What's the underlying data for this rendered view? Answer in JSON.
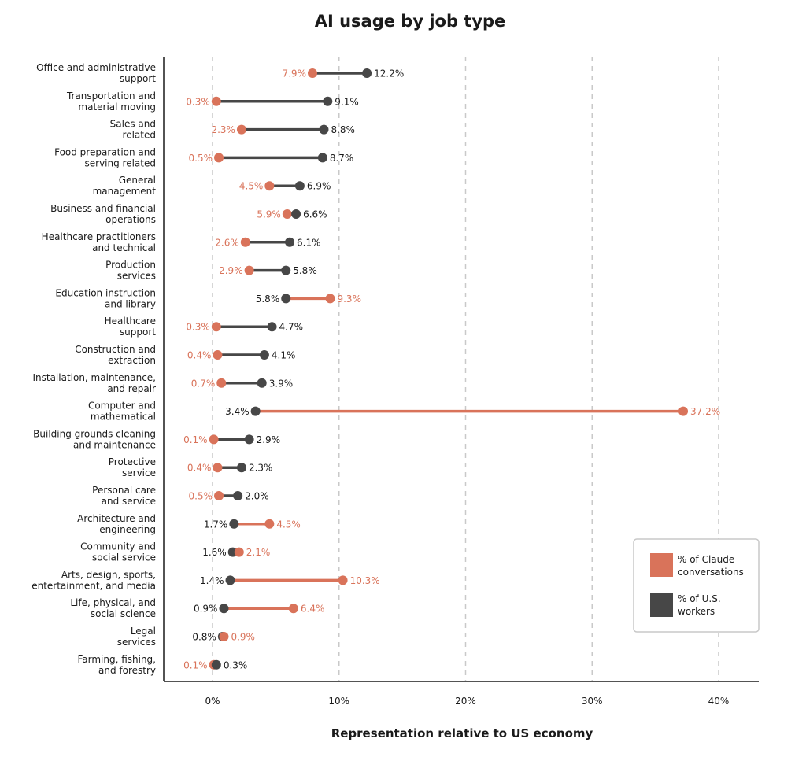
{
  "chart_data": {
    "type": "dumbbell",
    "title": "AI usage by job type",
    "xlabel": "Representation relative to US economy",
    "ylabel": "",
    "xlim": [
      -3.8,
      43
    ],
    "xticks": [
      0,
      10,
      20,
      30,
      40
    ],
    "xtick_labels": [
      "0%",
      "10%",
      "20%",
      "30%",
      "40%"
    ],
    "grid": "vertical dashed",
    "legend_position": "bottom-right",
    "colors": {
      "claude": "#d9735a",
      "workers": "#474747"
    },
    "series": [
      {
        "key": "claude",
        "name": "% of Claude conversations",
        "name_lines": [
          "% of Claude",
          "conversations"
        ]
      },
      {
        "key": "workers",
        "name": "% of U.S. workers",
        "name_lines": [
          "% of U.S.",
          "workers"
        ]
      }
    ],
    "categories": [
      {
        "label": [
          "Office and administrative",
          "support"
        ],
        "claude": 7.9,
        "claude_label": "7.9%",
        "workers": 12.2,
        "workers_label": "12.2%"
      },
      {
        "label": [
          "Transportation and",
          "material moving"
        ],
        "claude": 0.3,
        "claude_label": "0.3%",
        "workers": 9.1,
        "workers_label": "9.1%"
      },
      {
        "label": [
          "Sales and",
          "related"
        ],
        "claude": 2.3,
        "claude_label": "2.3%",
        "workers": 8.8,
        "workers_label": "8.8%"
      },
      {
        "label": [
          "Food preparation and",
          "serving related"
        ],
        "claude": 0.5,
        "claude_label": "0.5%",
        "workers": 8.7,
        "workers_label": "8.7%"
      },
      {
        "label": [
          "General",
          "management"
        ],
        "claude": 4.5,
        "claude_label": "4.5%",
        "workers": 6.9,
        "workers_label": "6.9%"
      },
      {
        "label": [
          "Business and financial",
          "operations"
        ],
        "claude": 5.9,
        "claude_label": "5.9%",
        "workers": 6.6,
        "workers_label": "6.6%"
      },
      {
        "label": [
          "Healthcare practitioners",
          "and technical"
        ],
        "claude": 2.6,
        "claude_label": "2.6%",
        "workers": 6.1,
        "workers_label": "6.1%"
      },
      {
        "label": [
          "Production",
          "services"
        ],
        "claude": 2.9,
        "claude_label": "2.9%",
        "workers": 5.8,
        "workers_label": "5.8%"
      },
      {
        "label": [
          "Education instruction",
          "and library"
        ],
        "claude": 9.3,
        "claude_label": "9.3%",
        "workers": 5.8,
        "workers_label": "5.8%"
      },
      {
        "label": [
          "Healthcare",
          "support"
        ],
        "claude": 0.3,
        "claude_label": "0.3%",
        "workers": 4.7,
        "workers_label": "4.7%"
      },
      {
        "label": [
          "Construction and",
          "extraction"
        ],
        "claude": 0.4,
        "claude_label": "0.4%",
        "workers": 4.1,
        "workers_label": "4.1%"
      },
      {
        "label": [
          "Installation, maintenance,",
          "and repair"
        ],
        "claude": 0.7,
        "claude_label": "0.7%",
        "workers": 3.9,
        "workers_label": "3.9%"
      },
      {
        "label": [
          "Computer and",
          "mathematical"
        ],
        "claude": 37.2,
        "claude_label": "37.2%",
        "workers": 3.4,
        "workers_label": "3.4%"
      },
      {
        "label": [
          "Building grounds cleaning",
          "and maintenance"
        ],
        "claude": 0.1,
        "claude_label": "0.1%",
        "workers": 2.9,
        "workers_label": "2.9%"
      },
      {
        "label": [
          "Protective",
          "service"
        ],
        "claude": 0.4,
        "claude_label": "0.4%",
        "workers": 2.3,
        "workers_label": "2.3%"
      },
      {
        "label": [
          "Personal care",
          "and service"
        ],
        "claude": 0.5,
        "claude_label": "0.5%",
        "workers": 2.0,
        "workers_label": "2.0%"
      },
      {
        "label": [
          "Architecture and",
          "engineering"
        ],
        "claude": 4.5,
        "claude_label": "4.5%",
        "workers": 1.7,
        "workers_label": "1.7%"
      },
      {
        "label": [
          "Community and",
          "social service"
        ],
        "claude": 2.1,
        "claude_label": "2.1%",
        "workers": 1.6,
        "workers_label": "1.6%"
      },
      {
        "label": [
          "Arts, design, sports,",
          "entertainment, and media"
        ],
        "claude": 10.3,
        "claude_label": "10.3%",
        "workers": 1.4,
        "workers_label": "1.4%"
      },
      {
        "label": [
          "Life, physical, and",
          "social science"
        ],
        "claude": 6.4,
        "claude_label": "6.4%",
        "workers": 0.9,
        "workers_label": "0.9%"
      },
      {
        "label": [
          "Legal",
          "services"
        ],
        "claude": 0.9,
        "claude_label": "0.9%",
        "workers": 0.8,
        "workers_label": "0.8%"
      },
      {
        "label": [
          "Farming, fishing,",
          "and forestry"
        ],
        "claude": 0.1,
        "claude_label": "0.1%",
        "workers": 0.3,
        "workers_label": "0.3%"
      }
    ]
  }
}
